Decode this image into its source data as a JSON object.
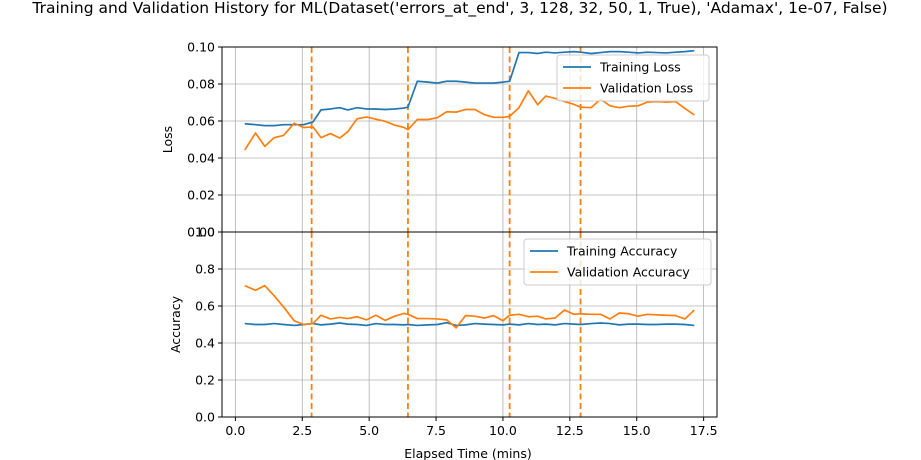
{
  "chart_data": {
    "title": "Training and Validation History for ML(Dataset('errors_at_end', 3, 128, 32, 50, 1, True), 'Adamax', 1e-07, False)",
    "xlabel": "Elapsed Time (mins)",
    "xlim": [
      -0.5,
      18.0
    ],
    "xticks": [
      0.0,
      2.5,
      5.0,
      7.5,
      10.0,
      12.5,
      15.0,
      17.5
    ],
    "xtick_labels": [
      "0.0",
      "2.5",
      "5.0",
      "7.5",
      "10.0",
      "12.5",
      "15.0",
      "17.5"
    ],
    "vlines": {
      "color": "#ff7f0e",
      "style": "dashed",
      "x": [
        2.85,
        6.45,
        10.25,
        12.9
      ]
    },
    "grid": true,
    "subplots": [
      {
        "name": "loss",
        "type": "line",
        "ylabel": "Loss",
        "ylim": [
          0.0,
          0.1
        ],
        "yticks": [
          0.0,
          0.02,
          0.04,
          0.06,
          0.08,
          0.1
        ],
        "ytick_labels": [
          "0.00",
          "0.02",
          "0.04",
          "0.06",
          "0.08",
          "0.10"
        ],
        "legend_placement": "upper-right",
        "x": [
          0.35,
          0.75,
          1.1,
          1.45,
          1.8,
          2.2,
          2.55,
          2.9,
          3.2,
          3.55,
          3.9,
          4.2,
          4.55,
          4.9,
          5.25,
          5.6,
          5.95,
          6.3,
          6.45,
          6.8,
          7.2,
          7.55,
          7.9,
          8.25,
          8.6,
          8.95,
          9.3,
          9.65,
          10.0,
          10.25,
          10.6,
          10.95,
          11.3,
          11.6,
          11.95,
          12.3,
          12.65,
          12.9,
          13.3,
          13.65,
          14.0,
          14.35,
          14.7,
          15.05,
          15.4,
          15.75,
          16.1,
          16.45,
          16.8,
          17.15
        ],
        "series": [
          {
            "name": "Training Loss",
            "color": "#1f77b4",
            "values": [
              0.0585,
              0.058,
              0.0575,
              0.0575,
              0.058,
              0.058,
              0.058,
              0.0595,
              0.066,
              0.0665,
              0.0672,
              0.066,
              0.0672,
              0.0665,
              0.0665,
              0.0662,
              0.0665,
              0.067,
              0.0675,
              0.0815,
              0.081,
              0.0805,
              0.0815,
              0.0815,
              0.081,
              0.0805,
              0.0805,
              0.0805,
              0.081,
              0.0815,
              0.097,
              0.097,
              0.0965,
              0.0972,
              0.0968,
              0.0972,
              0.0975,
              0.0972,
              0.0965,
              0.097,
              0.0975,
              0.0975,
              0.0972,
              0.0968,
              0.0972,
              0.097,
              0.0968,
              0.0972,
              0.0975,
              0.098
            ]
          },
          {
            "name": "Validation Loss",
            "color": "#ff7f0e",
            "values": [
              0.0443,
              0.0535,
              0.0463,
              0.051,
              0.0522,
              0.0588,
              0.0565,
              0.0568,
              0.051,
              0.0532,
              0.0508,
              0.0542,
              0.0612,
              0.0622,
              0.061,
              0.0598,
              0.0578,
              0.0565,
              0.0553,
              0.0608,
              0.0608,
              0.0618,
              0.065,
              0.0648,
              0.0662,
              0.0662,
              0.0635,
              0.062,
              0.062,
              0.0625,
              0.0672,
              0.0763,
              0.0688,
              0.0735,
              0.0722,
              0.0705,
              0.069,
              0.0675,
              0.0672,
              0.0718,
              0.0682,
              0.0672,
              0.068,
              0.0682,
              0.0702,
              0.0705,
              0.0702,
              0.0705,
              0.0668,
              0.0633
            ]
          }
        ]
      },
      {
        "name": "accuracy",
        "type": "line",
        "ylabel": "Accuracy",
        "ylim": [
          0.0,
          1.0
        ],
        "yticks": [
          0.0,
          0.2,
          0.4,
          0.6,
          0.8,
          1.0
        ],
        "ytick_labels": [
          "0.0",
          "0.2",
          "0.4",
          "0.6",
          "0.8",
          "1.0"
        ],
        "legend_placement": "upper-right",
        "x": [
          0.35,
          0.75,
          1.1,
          1.45,
          1.8,
          2.2,
          2.55,
          2.9,
          3.2,
          3.55,
          3.9,
          4.2,
          4.55,
          4.9,
          5.25,
          5.6,
          5.95,
          6.3,
          6.45,
          6.8,
          7.2,
          7.55,
          7.9,
          8.25,
          8.6,
          8.95,
          9.3,
          9.65,
          10.0,
          10.25,
          10.6,
          10.95,
          11.3,
          11.6,
          11.95,
          12.3,
          12.65,
          12.9,
          13.3,
          13.65,
          14.0,
          14.35,
          14.7,
          15.05,
          15.4,
          15.75,
          16.1,
          16.45,
          16.8,
          17.15
        ],
        "series": [
          {
            "name": "Training Accuracy",
            "color": "#1f77b4",
            "values": [
              0.505,
              0.5,
              0.5,
              0.505,
              0.5,
              0.495,
              0.5,
              0.505,
              0.498,
              0.502,
              0.508,
              0.502,
              0.5,
              0.495,
              0.505,
              0.5,
              0.5,
              0.498,
              0.5,
              0.495,
              0.498,
              0.5,
              0.51,
              0.495,
              0.498,
              0.505,
              0.502,
              0.5,
              0.498,
              0.502,
              0.498,
              0.505,
              0.5,
              0.502,
              0.498,
              0.505,
              0.502,
              0.5,
              0.505,
              0.508,
              0.505,
              0.498,
              0.502,
              0.502,
              0.5,
              0.5,
              0.502,
              0.502,
              0.5,
              0.495
            ]
          },
          {
            "name": "Validation Accuracy",
            "color": "#ff7f0e",
            "values": [
              0.71,
              0.685,
              0.71,
              0.655,
              0.595,
              0.52,
              0.5,
              0.505,
              0.55,
              0.53,
              0.538,
              0.532,
              0.542,
              0.525,
              0.55,
              0.522,
              0.545,
              0.56,
              0.555,
              0.532,
              0.532,
              0.53,
              0.525,
              0.482,
              0.548,
              0.545,
              0.535,
              0.548,
              0.52,
              0.55,
              0.555,
              0.542,
              0.545,
              0.53,
              0.535,
              0.578,
              0.555,
              0.558,
              0.555,
              0.555,
              0.53,
              0.562,
              0.558,
              0.545,
              0.555,
              0.552,
              0.55,
              0.548,
              0.53,
              0.578
            ]
          }
        ]
      }
    ]
  }
}
